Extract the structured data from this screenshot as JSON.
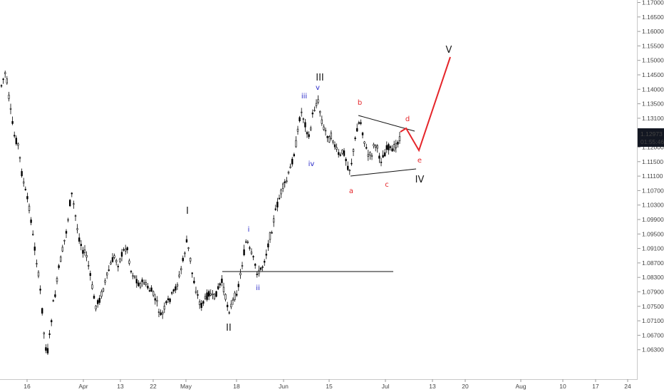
{
  "chart_data": {
    "type": "candlestick",
    "title": "",
    "xlabel": "",
    "ylabel": "",
    "grid": false,
    "y_ticks": [
      "1.17000",
      "1.16500",
      "1.16000",
      "1.15500",
      "1.15000",
      "1.14500",
      "1.14000",
      "1.13500",
      "1.13100",
      "1.12500",
      "1.12000",
      "1.11500",
      "1.11100",
      "1.10700",
      "1.10300",
      "1.09900",
      "1.09500",
      "1.09100",
      "1.08700",
      "1.08300",
      "1.07900",
      "1.07500",
      "1.07100",
      "1.06700",
      "1.06300"
    ],
    "x_ticks": [
      "16",
      "Apr",
      "13",
      "22",
      "May",
      "18",
      "Jun",
      "15",
      "Jul",
      "13",
      "20",
      "Aug",
      "10",
      "17",
      "24"
    ],
    "price_label": "1.12973",
    "countdown_label": "01:55:46",
    "wave_labels": {
      "major": [
        "I",
        "II",
        "III",
        "IV",
        "V"
      ],
      "minor": [
        "i",
        "ii",
        "iii",
        "iv",
        "v"
      ],
      "triangle": [
        "a",
        "b",
        "c",
        "d",
        "e"
      ]
    },
    "colors": {
      "candles": "#000000",
      "major_labels": "#1a1a1a",
      "minor_labels": "#2929c8",
      "triangle_labels": "#e5252a",
      "projection": "#e5252a",
      "badge": "#131722"
    }
  }
}
